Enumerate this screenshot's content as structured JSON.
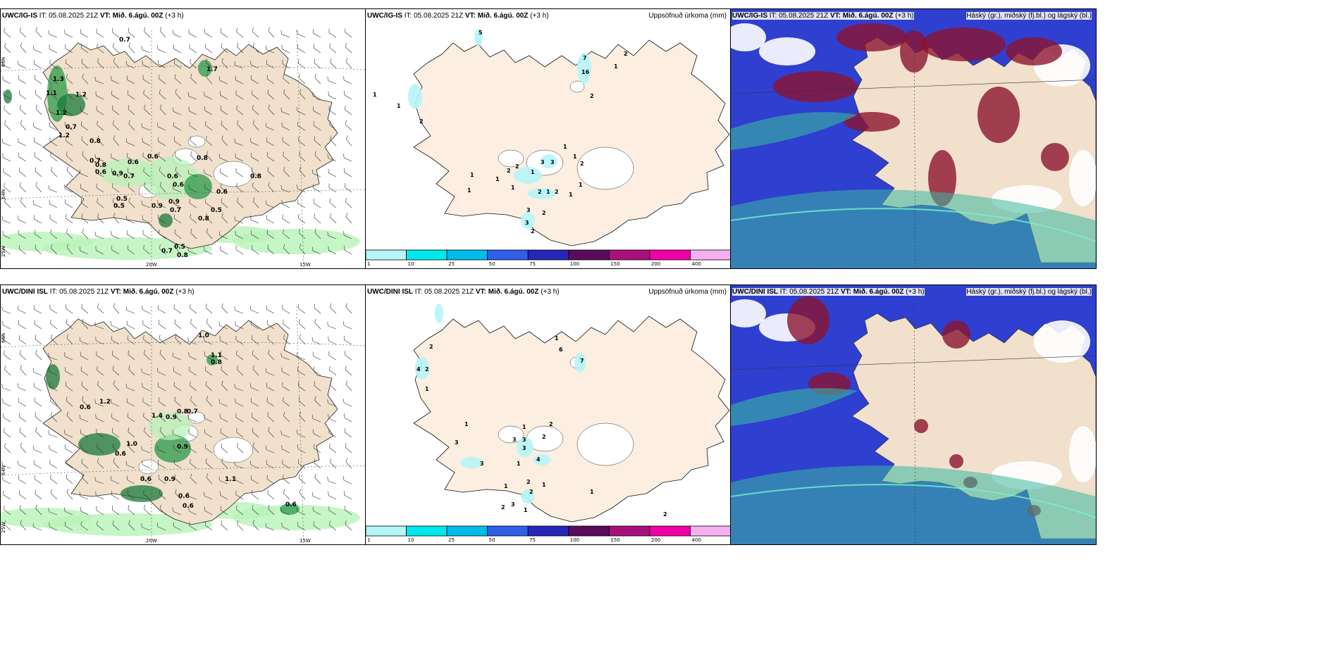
{
  "panels": [
    {
      "model": "UWC/IG-IS",
      "it_label": "IT:",
      "it": "05.08.2025 21Z",
      "vt_label": "VT:",
      "vt": "Mið. 6.ágú. 00Z",
      "lead": "(+3 h)",
      "right": ""
    },
    {
      "model": "UWC/IG-IS",
      "it_label": "IT:",
      "it": "05.08.2025 21Z",
      "vt_label": "VT:",
      "vt": "Mið. 6.ágú. 00Z",
      "lead": "(+3 h)",
      "right": "Uppsöfnuð úrkoma (mm)"
    },
    {
      "model": "UWC/IG-IS",
      "it_label": "IT:",
      "it": "05.08.2025 21Z",
      "vt_label": "VT:",
      "vt": "Mið. 6.ágú. 00Z",
      "lead": "(+3 h)",
      "right": "Háský (gr.), miðský (fj.bl.) og lágský (bl.)"
    },
    {
      "model": "UWC/DINI ISL",
      "it_label": "IT:",
      "it": "05.08.2025 21Z",
      "vt_label": "VT:",
      "vt": "Mið. 6.ágú. 00Z",
      "lead": "(+3 h)",
      "right": ""
    },
    {
      "model": "UWC/DINI ISL",
      "it_label": "IT:",
      "it": "05.08.2025 21Z",
      "vt_label": "VT:",
      "vt": "Mið. 6.ágú. 00Z",
      "lead": "(+3 h)",
      "right": "Uppsöfnuð úrkoma (mm)"
    },
    {
      "model": "UWC/DINI ISL",
      "it_label": "IT:",
      "it": "05.08.2025 21Z",
      "vt_label": "VT:",
      "vt": "Mið. 6.ágú. 00Z",
      "lead": "(+3 h)",
      "right": "Háský (gr.), miðský (fj.bl.) og lágský (bl.)"
    }
  ],
  "axis_labels": {
    "lat66": "66N",
    "lat64": "64N",
    "lon25": "25W",
    "lon20": "20W",
    "lon15": "15W"
  },
  "colorbar": {
    "ticks": [
      "1",
      "10",
      "25",
      "50",
      "75",
      "100",
      "150",
      "200",
      "400"
    ],
    "colors": [
      "#b6f5f8",
      "#00e8ee",
      "#00bce8",
      "#2f5ee8",
      "#2626b8",
      "#5c0a5c",
      "#a8107c",
      "#f000a8",
      "#f6b0f0"
    ]
  },
  "colors": {
    "land": "#f0e0cc",
    "land2": "#fceee0",
    "precip_light": "#b8f2b8",
    "precip_dark": "#1a7a3a",
    "cloud_high": "#8c1430",
    "cloud_mid": "#2f3fd0",
    "cloud_low": "#3ab8a0"
  },
  "panel1_values": [
    {
      "v": "0.7",
      "x": 168,
      "y": 46
    },
    {
      "v": "1.7",
      "x": 292,
      "y": 88
    },
    {
      "v": "1.3",
      "x": 74,
      "y": 102
    },
    {
      "v": "1.1",
      "x": 64,
      "y": 122
    },
    {
      "v": "1.2",
      "x": 106,
      "y": 124
    },
    {
      "v": "1.2",
      "x": 78,
      "y": 150
    },
    {
      "v": "0.7",
      "x": 92,
      "y": 170
    },
    {
      "v": "1.2",
      "x": 82,
      "y": 182
    },
    {
      "v": "0.8",
      "x": 126,
      "y": 190
    },
    {
      "v": "0.8",
      "x": 278,
      "y": 214
    },
    {
      "v": "0.6",
      "x": 208,
      "y": 212
    },
    {
      "v": "0.7",
      "x": 126,
      "y": 218
    },
    {
      "v": "0.8",
      "x": 134,
      "y": 224
    },
    {
      "v": "0.6",
      "x": 180,
      "y": 220
    },
    {
      "v": "0.6",
      "x": 134,
      "y": 234
    },
    {
      "v": "0.9",
      "x": 158,
      "y": 236
    },
    {
      "v": "0.7",
      "x": 174,
      "y": 240
    },
    {
      "v": "0.6",
      "x": 236,
      "y": 240
    },
    {
      "v": "0.8",
      "x": 354,
      "y": 240
    },
    {
      "v": "0.6",
      "x": 244,
      "y": 252
    },
    {
      "v": "0.6",
      "x": 306,
      "y": 262
    },
    {
      "v": "0.5",
      "x": 164,
      "y": 272
    },
    {
      "v": "0.5",
      "x": 160,
      "y": 282
    },
    {
      "v": "0.9",
      "x": 214,
      "y": 282
    },
    {
      "v": "0.9",
      "x": 238,
      "y": 276
    },
    {
      "v": "0.7",
      "x": 240,
      "y": 288
    },
    {
      "v": "0.5",
      "x": 298,
      "y": 288
    },
    {
      "v": "0.8",
      "x": 280,
      "y": 300
    },
    {
      "v": "0.7",
      "x": 228,
      "y": 346
    },
    {
      "v": "0.5",
      "x": 246,
      "y": 340
    },
    {
      "v": "0.8",
      "x": 250,
      "y": 352
    }
  ],
  "panel4_values": [
    {
      "v": "1.0",
      "x": 280,
      "y": 74
    },
    {
      "v": "1.1",
      "x": 298,
      "y": 102
    },
    {
      "v": "0.8",
      "x": 298,
      "y": 112
    },
    {
      "v": "1.2",
      "x": 140,
      "y": 168
    },
    {
      "v": "0.6",
      "x": 112,
      "y": 176
    },
    {
      "v": "1.4",
      "x": 214,
      "y": 188
    },
    {
      "v": "0.9",
      "x": 234,
      "y": 190
    },
    {
      "v": "0.8",
      "x": 250,
      "y": 182
    },
    {
      "v": "0.7",
      "x": 264,
      "y": 182
    },
    {
      "v": "1.0",
      "x": 178,
      "y": 228
    },
    {
      "v": "0.6",
      "x": 162,
      "y": 242
    },
    {
      "v": "0.9",
      "x": 250,
      "y": 232
    },
    {
      "v": "0.6",
      "x": 198,
      "y": 278
    },
    {
      "v": "0.9",
      "x": 232,
      "y": 278
    },
    {
      "v": "1.1",
      "x": 318,
      "y": 278
    },
    {
      "v": "0.6",
      "x": 252,
      "y": 302
    },
    {
      "v": "0.6",
      "x": 258,
      "y": 316
    },
    {
      "v": "0.6",
      "x": 404,
      "y": 314
    }
  ],
  "panel2_values": [
    {
      "v": "5",
      "x": 160,
      "y": 36
    },
    {
      "v": "7",
      "x": 308,
      "y": 72
    },
    {
      "v": "2",
      "x": 366,
      "y": 66
    },
    {
      "v": "1",
      "x": 352,
      "y": 84
    },
    {
      "v": "16",
      "x": 306,
      "y": 92
    },
    {
      "v": "1",
      "x": 10,
      "y": 124
    },
    {
      "v": "2",
      "x": 318,
      "y": 126
    },
    {
      "v": "1",
      "x": 44,
      "y": 140
    },
    {
      "v": "2",
      "x": 76,
      "y": 162
    },
    {
      "v": "1",
      "x": 280,
      "y": 198
    },
    {
      "v": "3",
      "x": 248,
      "y": 220
    },
    {
      "v": "3",
      "x": 262,
      "y": 220
    },
    {
      "v": "1",
      "x": 294,
      "y": 212
    },
    {
      "v": "2",
      "x": 304,
      "y": 222
    },
    {
      "v": "2",
      "x": 200,
      "y": 232
    },
    {
      "v": "2",
      "x": 212,
      "y": 226
    },
    {
      "v": "1",
      "x": 234,
      "y": 234
    },
    {
      "v": "1",
      "x": 184,
      "y": 244
    },
    {
      "v": "1",
      "x": 148,
      "y": 238
    },
    {
      "v": "1",
      "x": 302,
      "y": 252
    },
    {
      "v": "1",
      "x": 206,
      "y": 256
    },
    {
      "v": "2",
      "x": 244,
      "y": 262
    },
    {
      "v": "1",
      "x": 256,
      "y": 262
    },
    {
      "v": "2",
      "x": 268,
      "y": 262
    },
    {
      "v": "1",
      "x": 288,
      "y": 266
    },
    {
      "v": "1",
      "x": 144,
      "y": 260
    },
    {
      "v": "3",
      "x": 228,
      "y": 288
    },
    {
      "v": "2",
      "x": 250,
      "y": 292
    },
    {
      "v": "3",
      "x": 226,
      "y": 306
    },
    {
      "v": "2",
      "x": 234,
      "y": 318
    }
  ],
  "panel5_values": [
    {
      "v": "1",
      "x": 268,
      "y": 78
    },
    {
      "v": "6",
      "x": 274,
      "y": 94
    },
    {
      "v": "2",
      "x": 90,
      "y": 90
    },
    {
      "v": "7",
      "x": 304,
      "y": 110
    },
    {
      "v": "4",
      "x": 72,
      "y": 122
    },
    {
      "v": "2",
      "x": 84,
      "y": 122
    },
    {
      "v": "1",
      "x": 84,
      "y": 150
    },
    {
      "v": "1",
      "x": 140,
      "y": 200
    },
    {
      "v": "2",
      "x": 260,
      "y": 200
    },
    {
      "v": "1",
      "x": 222,
      "y": 204
    },
    {
      "v": "3",
      "x": 208,
      "y": 222
    },
    {
      "v": "3",
      "x": 222,
      "y": 222
    },
    {
      "v": "3",
      "x": 222,
      "y": 234
    },
    {
      "v": "2",
      "x": 250,
      "y": 218
    },
    {
      "v": "3",
      "x": 126,
      "y": 226
    },
    {
      "v": "4",
      "x": 242,
      "y": 250
    },
    {
      "v": "3",
      "x": 162,
      "y": 256
    },
    {
      "v": "1",
      "x": 214,
      "y": 256
    },
    {
      "v": "2",
      "x": 228,
      "y": 282
    },
    {
      "v": "1",
      "x": 250,
      "y": 286
    },
    {
      "v": "1",
      "x": 196,
      "y": 288
    },
    {
      "v": "2",
      "x": 232,
      "y": 296
    },
    {
      "v": "1",
      "x": 318,
      "y": 296
    },
    {
      "v": "2",
      "x": 192,
      "y": 318
    },
    {
      "v": "3",
      "x": 206,
      "y": 314
    },
    {
      "v": "1",
      "x": 224,
      "y": 322
    },
    {
      "v": "2",
      "x": 422,
      "y": 328
    }
  ]
}
